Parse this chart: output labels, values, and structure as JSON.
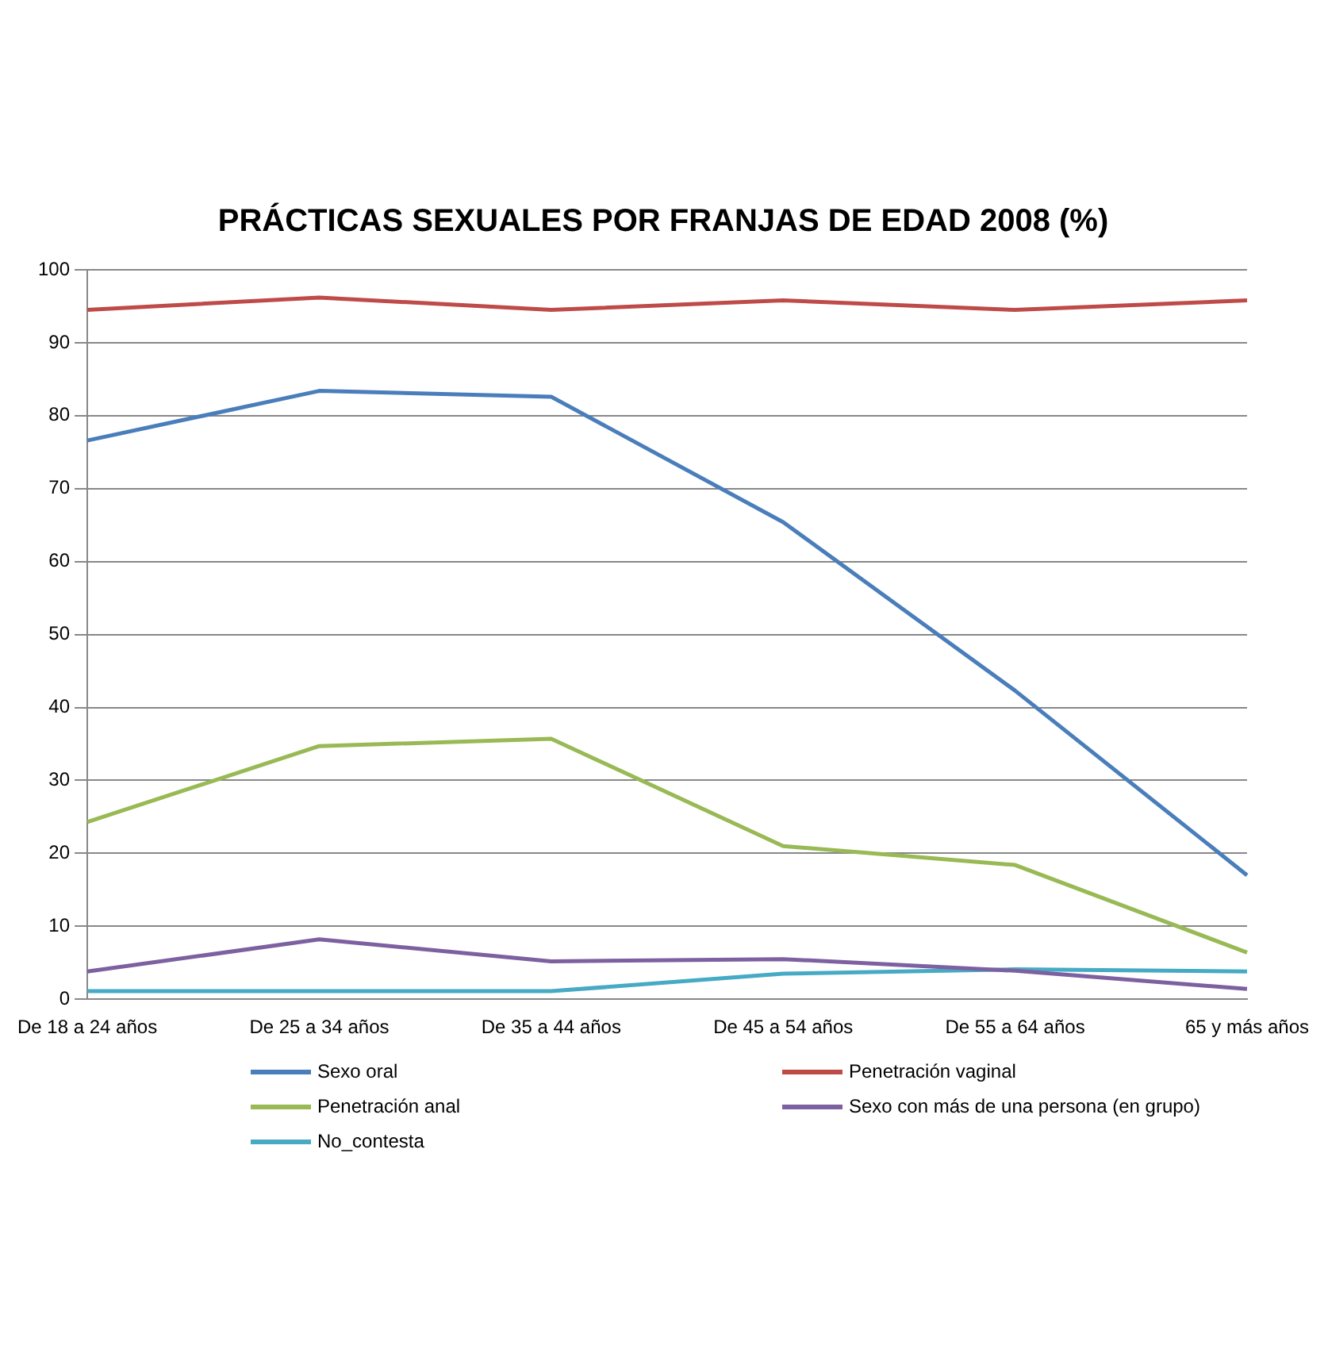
{
  "chart_data": {
    "type": "line",
    "title": "PRÁCTICAS SEXUALES POR FRANJAS DE EDAD 2008 (%)",
    "categories": [
      "De 18 a 24 años",
      "De 25 a 34 años",
      "De 35 a 44 años",
      "De 45 a 54 años",
      "De 55 a 64 años",
      "65 y más años"
    ],
    "series": [
      {
        "name": "Sexo oral",
        "color": "#4a7ebb",
        "values": [
          76.6,
          83.4,
          82.6,
          65.4,
          42.3,
          17
        ]
      },
      {
        "name": "Penetración vaginal",
        "color": "#be4b48",
        "values": [
          94.5,
          96.2,
          94.5,
          95.8,
          94.5,
          95.8
        ]
      },
      {
        "name": "Penetración anal",
        "color": "#98b954",
        "values": [
          24.3,
          34.7,
          35.7,
          21,
          18.4,
          6.4
        ]
      },
      {
        "name": "Sexo con más de una persona (en grupo)",
        "color": "#7d60a0",
        "values": [
          3.8,
          8.2,
          5.2,
          5.5,
          3.9,
          1.4
        ]
      },
      {
        "name": "No_contesta",
        "color": "#46aac5",
        "values": [
          1.1,
          1.1,
          1.1,
          3.5,
          4.1,
          3.8
        ]
      }
    ],
    "ylim": [
      0,
      100
    ],
    "yticks": [
      0,
      10,
      20,
      30,
      40,
      50,
      60,
      70,
      80,
      90,
      100
    ],
    "grid": "y",
    "legend": "bottom",
    "marker": "none",
    "line_style": "solid"
  }
}
